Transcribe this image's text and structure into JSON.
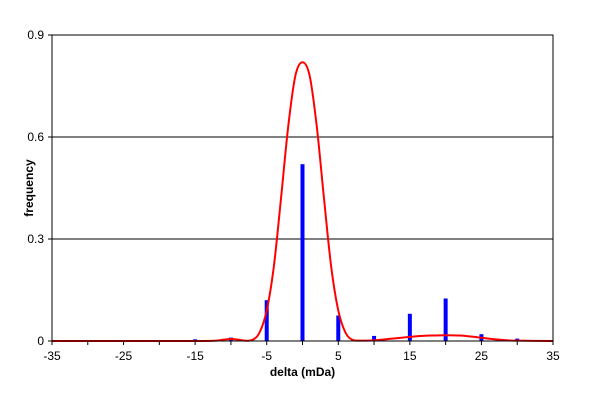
{
  "colors": {
    "background": "#ffffff",
    "plot_border": "#000000",
    "gridline": "#000000",
    "bars": "#0000ff",
    "curve": "#ff0000"
  },
  "chart_data": {
    "type": "bar",
    "title": "",
    "xlabel": "delta (mDa)",
    "ylabel": "frequency",
    "xlim": [
      -35,
      35
    ],
    "ylim": [
      0,
      0.9
    ],
    "xticks": [
      -35,
      -25,
      -15,
      -5,
      5,
      15,
      25,
      35
    ],
    "xtick_labels": [
      "-35",
      "-25",
      "-15",
      "-5",
      "5",
      "15",
      "25",
      "35"
    ],
    "yticks": [
      0,
      0.3,
      0.6,
      0.9
    ],
    "ytick_labels": [
      "0",
      "0.3",
      "0.6",
      "0.9"
    ],
    "grid": "horizontal",
    "legend": "none",
    "series": [
      {
        "type": "bar",
        "x": [
          -15,
          -10,
          -5,
          0,
          5,
          10,
          15,
          20,
          25,
          30
        ],
        "values": [
          0.005,
          0.01,
          0.12,
          0.52,
          0.075,
          0.015,
          0.08,
          0.125,
          0.02,
          0.007
        ]
      },
      {
        "type": "line",
        "x": [
          -35,
          -20,
          -14,
          -12,
          -11,
          -10,
          -9,
          -8,
          -7,
          -6,
          -5,
          -4,
          -3,
          -2,
          -1,
          0,
          1,
          2,
          3,
          4,
          5,
          6,
          7,
          8,
          10,
          12,
          14,
          16,
          18,
          20,
          22,
          24,
          26,
          28,
          30,
          35
        ],
        "values": [
          0,
          0,
          0,
          0.001,
          0.004,
          0.006,
          0.004,
          0.001,
          0.003,
          0.025,
          0.09,
          0.22,
          0.42,
          0.63,
          0.78,
          0.82,
          0.78,
          0.63,
          0.42,
          0.22,
          0.09,
          0.025,
          0.003,
          0.001,
          0.002,
          0.006,
          0.01,
          0.014,
          0.016,
          0.017,
          0.016,
          0.012,
          0.007,
          0.003,
          0.001,
          0
        ]
      }
    ]
  }
}
